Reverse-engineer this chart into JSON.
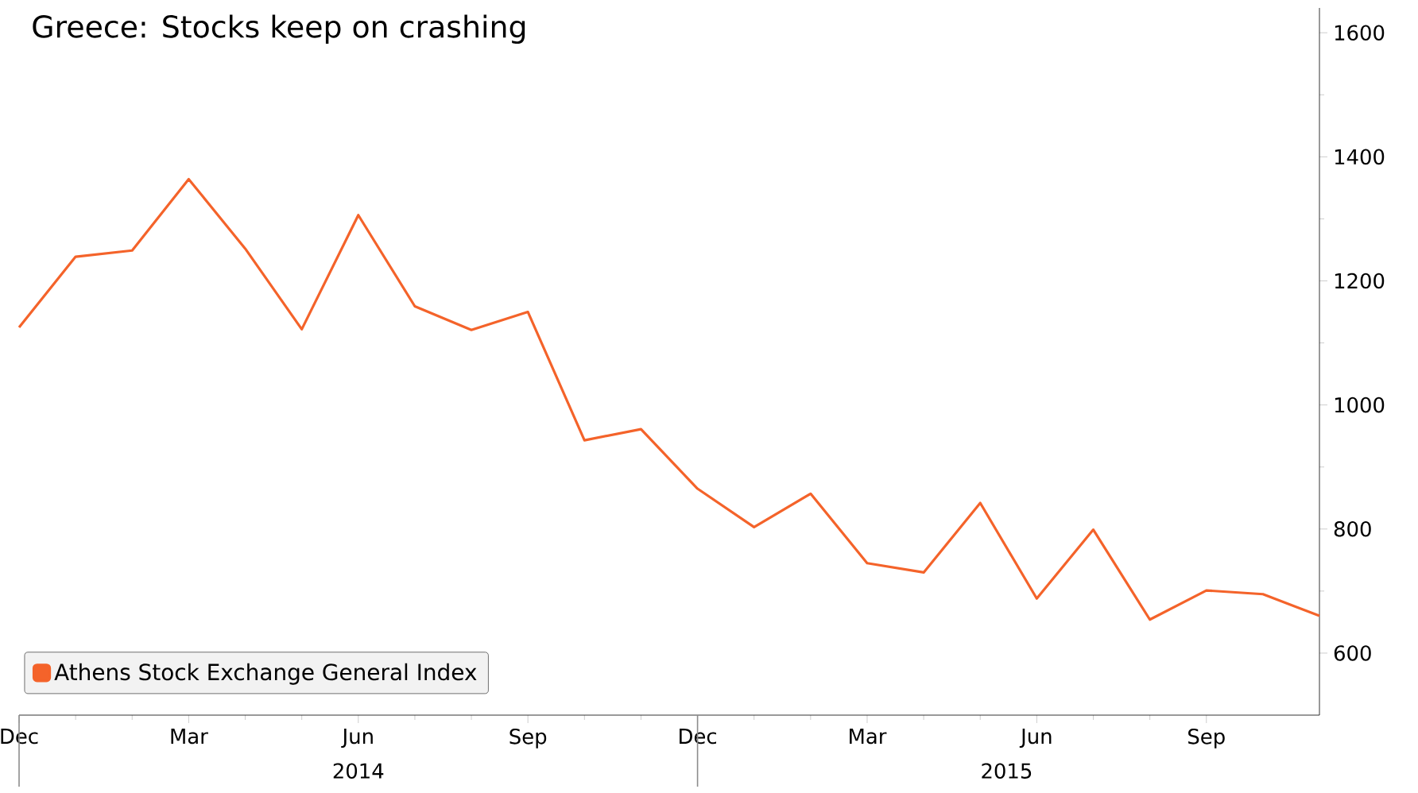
{
  "chart_data": {
    "type": "line",
    "title": "Greece: Stocks keep on crashing",
    "x": [
      "2013-12",
      "2014-01",
      "2014-02",
      "2014-03",
      "2014-04",
      "2014-05",
      "2014-06",
      "2014-07",
      "2014-08",
      "2014-09",
      "2014-10",
      "2014-11",
      "2014-12",
      "2015-01",
      "2015-02",
      "2015-03",
      "2015-04",
      "2015-05",
      "2015-06",
      "2015-07",
      "2015-08",
      "2015-09",
      "2015-10",
      "2015-11"
    ],
    "series": [
      {
        "name": "Athens Stock Exchange General Index",
        "color": "#f4632a",
        "values": [
          1125,
          1239,
          1249,
          1364,
          1252,
          1122,
          1306,
          1159,
          1121,
          1150,
          943,
          961,
          865,
          803,
          857,
          745,
          730,
          842,
          688,
          799,
          654,
          701,
          695,
          660
        ]
      }
    ],
    "xlim": [
      "2013-12",
      "2015-11"
    ],
    "xticks": [
      {
        "value": "2013-12",
        "label": "Dec"
      },
      {
        "value": "2014-03",
        "label": "Mar"
      },
      {
        "value": "2014-06",
        "label": "Jun"
      },
      {
        "value": "2014-09",
        "label": "Sep"
      },
      {
        "value": "2014-12",
        "label": "Dec"
      },
      {
        "value": "2015-03",
        "label": "Mar"
      },
      {
        "value": "2015-06",
        "label": "Jun"
      },
      {
        "value": "2015-09",
        "label": "Sep"
      }
    ],
    "x2lim": [
      "2013-12",
      "2015-11"
    ],
    "x2ticks": [
      {
        "value": "2013-12",
        "label": null
      },
      {
        "value": "2014-06",
        "label": "2014"
      },
      {
        "value": "2014-12",
        "label": null
      },
      {
        "value": "2015-05-15",
        "label": "2015"
      }
    ],
    "ylim": [
      500,
      1640
    ],
    "yticks": [
      600,
      800,
      1000,
      1200,
      1400,
      1600
    ],
    "grid": false,
    "legend": "bottom left",
    "line_style": "solid",
    "marker": "none"
  }
}
